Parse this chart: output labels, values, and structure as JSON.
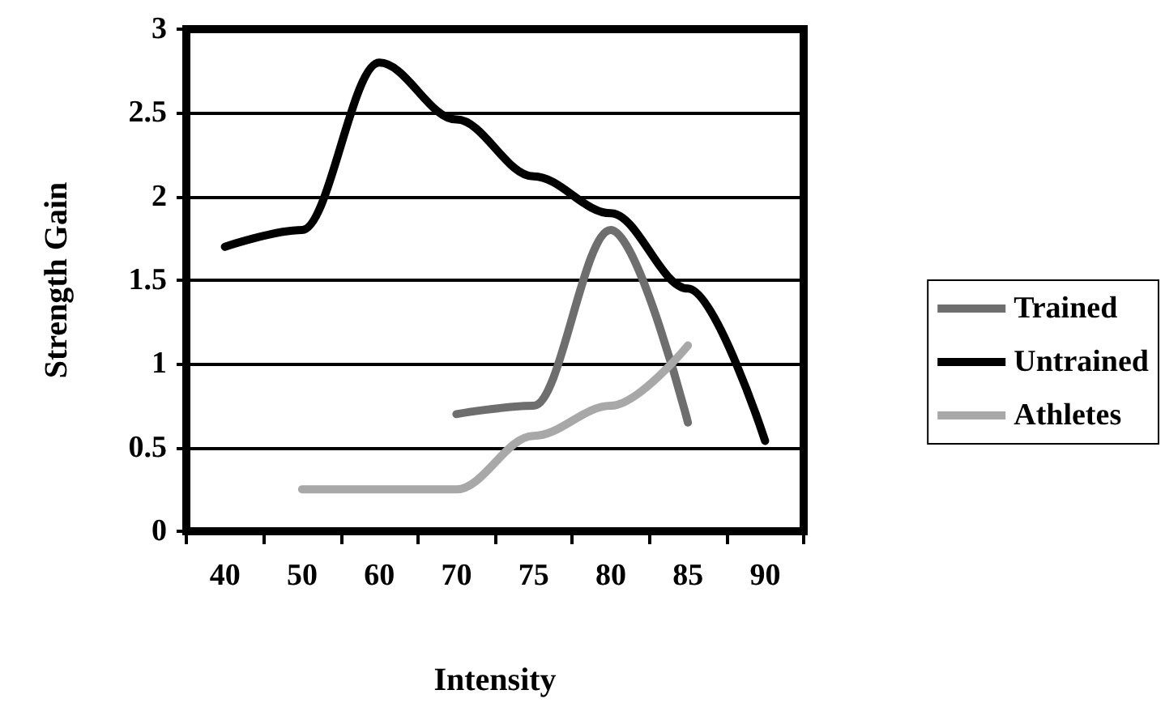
{
  "chart_data": {
    "type": "line",
    "xlabel": "Intensity",
    "ylabel": "Strength Gain",
    "categories": [
      "40",
      "50",
      "60",
      "70",
      "75",
      "80",
      "85",
      "90"
    ],
    "series": [
      {
        "name": "Trained",
        "color": "#6e6e6e",
        "values": [
          null,
          null,
          null,
          0.7,
          0.75,
          1.8,
          0.65,
          null
        ]
      },
      {
        "name": "Untrained",
        "color": "#000000",
        "values": [
          1.7,
          1.8,
          2.8,
          2.46,
          2.12,
          1.9,
          1.45,
          0.54
        ]
      },
      {
        "name": "Athletes",
        "color": "#a8a8a8",
        "values": [
          null,
          0.25,
          0.25,
          0.25,
          0.57,
          0.75,
          1.11,
          null
        ]
      }
    ],
    "ylim": [
      0,
      3
    ],
    "yticks": [
      0,
      0.5,
      1,
      1.5,
      2,
      2.5,
      3
    ],
    "grid": "y",
    "legend": "right",
    "marker": "none",
    "line_style": "solid"
  }
}
